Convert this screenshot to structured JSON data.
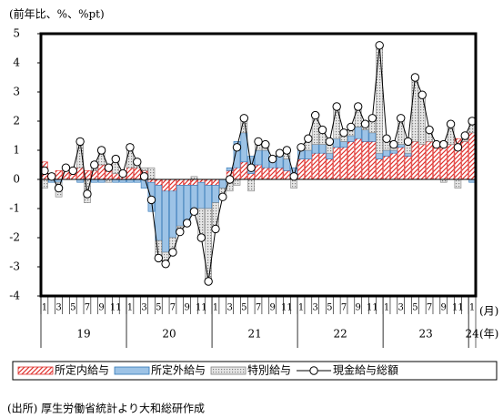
{
  "chart_data": {
    "type": "bar",
    "stacked": true,
    "y_label": "(前年比、%、%pt)",
    "x_unit_month": "(月)",
    "x_unit_year": "(年)",
    "source": "(出所) 厚生労働省統計より大和総研作成",
    "categories": [
      "1",
      null,
      "3",
      null,
      "5",
      null,
      "7",
      null,
      "9",
      null,
      "11",
      null,
      "1",
      null,
      "3",
      null,
      "5",
      null,
      "7",
      null,
      "9",
      null,
      "11",
      null,
      "1",
      null,
      "3",
      null,
      "5",
      null,
      "7",
      null,
      "9",
      null,
      "11",
      null,
      "1",
      null,
      "3",
      null,
      "5",
      null,
      "7",
      null,
      "9",
      null,
      "11",
      null,
      "1",
      null,
      "3",
      null,
      "5",
      null,
      "7",
      null,
      "9",
      null,
      "11",
      null,
      "1"
    ],
    "years": [
      "19",
      "20",
      "21",
      "22",
      "23",
      "24"
    ],
    "ylim": [
      -4,
      5
    ],
    "yticks": [
      -4,
      -3,
      -2,
      -1,
      0,
      1,
      2,
      3,
      4,
      5
    ],
    "legend": "bottom",
    "series": [
      {
        "name": "所定内給与",
        "type": "bar",
        "pattern": "hatch",
        "color": "#e0312d",
        "values": [
          0.6,
          0.2,
          0.3,
          0.3,
          0.2,
          0.4,
          0.3,
          0.3,
          0.5,
          0.5,
          0.2,
          0.3,
          0.4,
          0.4,
          0.3,
          -0.1,
          -0.2,
          -0.4,
          -0.4,
          -0.2,
          -0.2,
          -0.2,
          -0.1,
          -0.2,
          -0.2,
          0.0,
          0.3,
          0.4,
          0.6,
          0.2,
          0.5,
          0.4,
          0.4,
          0.4,
          0.3,
          0.1,
          0.7,
          0.7,
          0.9,
          0.9,
          0.7,
          1.1,
          1.1,
          1.3,
          1.4,
          1.3,
          1.3,
          0.7,
          0.8,
          0.9,
          1.1,
          0.8,
          1.3,
          1.2,
          1.3,
          1.1,
          1.3,
          1.2,
          1.4,
          1.3,
          1.6
        ]
      },
      {
        "name": "所定外給与",
        "type": "bar",
        "pattern": "solid",
        "color": "#9dc3e6",
        "values": [
          0.0,
          -0.1,
          -0.1,
          0.0,
          0.0,
          -0.1,
          0.0,
          -0.1,
          -0.1,
          0.0,
          -0.1,
          -0.1,
          -0.1,
          -0.1,
          -0.3,
          -1.0,
          -1.9,
          -2.1,
          -1.6,
          -1.4,
          -1.3,
          -1.0,
          -0.9,
          -0.8,
          -0.6,
          -0.3,
          0.1,
          0.9,
          1.0,
          0.6,
          0.5,
          0.6,
          0.3,
          0.4,
          0.4,
          0.3,
          0.3,
          0.3,
          0.3,
          0.3,
          0.2,
          0.3,
          0.2,
          0.2,
          0.4,
          0.4,
          0.3,
          0.2,
          0.2,
          0.1,
          0.1,
          0.1,
          0.0,
          0.0,
          0.0,
          0.0,
          0.0,
          0.0,
          0.0,
          0.0,
          -0.1
        ]
      },
      {
        "name": "特別給与",
        "type": "bar",
        "pattern": "dots",
        "color": "#a6a6a6",
        "values": [
          -0.3,
          0.0,
          -0.5,
          0.1,
          0.1,
          1.0,
          -0.8,
          0.3,
          0.6,
          -0.1,
          0.6,
          0.0,
          0.8,
          0.3,
          0.1,
          0.4,
          -0.6,
          -0.4,
          -0.5,
          -0.2,
          0.0,
          0.1,
          -1.0,
          -2.5,
          -0.9,
          -0.3,
          -0.4,
          -0.2,
          0.5,
          -0.4,
          0.3,
          0.2,
          0.0,
          0.1,
          0.3,
          -0.3,
          0.1,
          0.4,
          1.0,
          0.5,
          0.4,
          1.1,
          0.3,
          0.3,
          0.7,
          0.2,
          0.5,
          3.7,
          0.4,
          0.2,
          0.9,
          0.4,
          2.2,
          1.7,
          0.4,
          0.1,
          -0.1,
          0.7,
          -0.3,
          0.2,
          0.5
        ]
      },
      {
        "name": "現金給与総額",
        "type": "line",
        "color": "#000000",
        "values": [
          0.3,
          0.1,
          -0.3,
          0.4,
          0.3,
          1.3,
          -0.5,
          0.5,
          1.0,
          0.4,
          0.7,
          0.2,
          1.1,
          0.6,
          0.1,
          -0.7,
          -2.7,
          -2.9,
          -2.5,
          -1.8,
          -1.5,
          -1.1,
          -2.0,
          -3.5,
          -1.7,
          -0.6,
          0.0,
          1.1,
          2.1,
          0.4,
          1.3,
          1.2,
          0.7,
          0.9,
          1.0,
          0.1,
          1.1,
          1.4,
          2.2,
          1.7,
          1.3,
          2.5,
          1.6,
          1.8,
          2.5,
          1.9,
          2.1,
          4.6,
          1.4,
          1.2,
          2.1,
          1.3,
          3.5,
          2.9,
          1.7,
          1.2,
          1.2,
          1.9,
          1.1,
          1.5,
          2.0
        ]
      }
    ]
  }
}
